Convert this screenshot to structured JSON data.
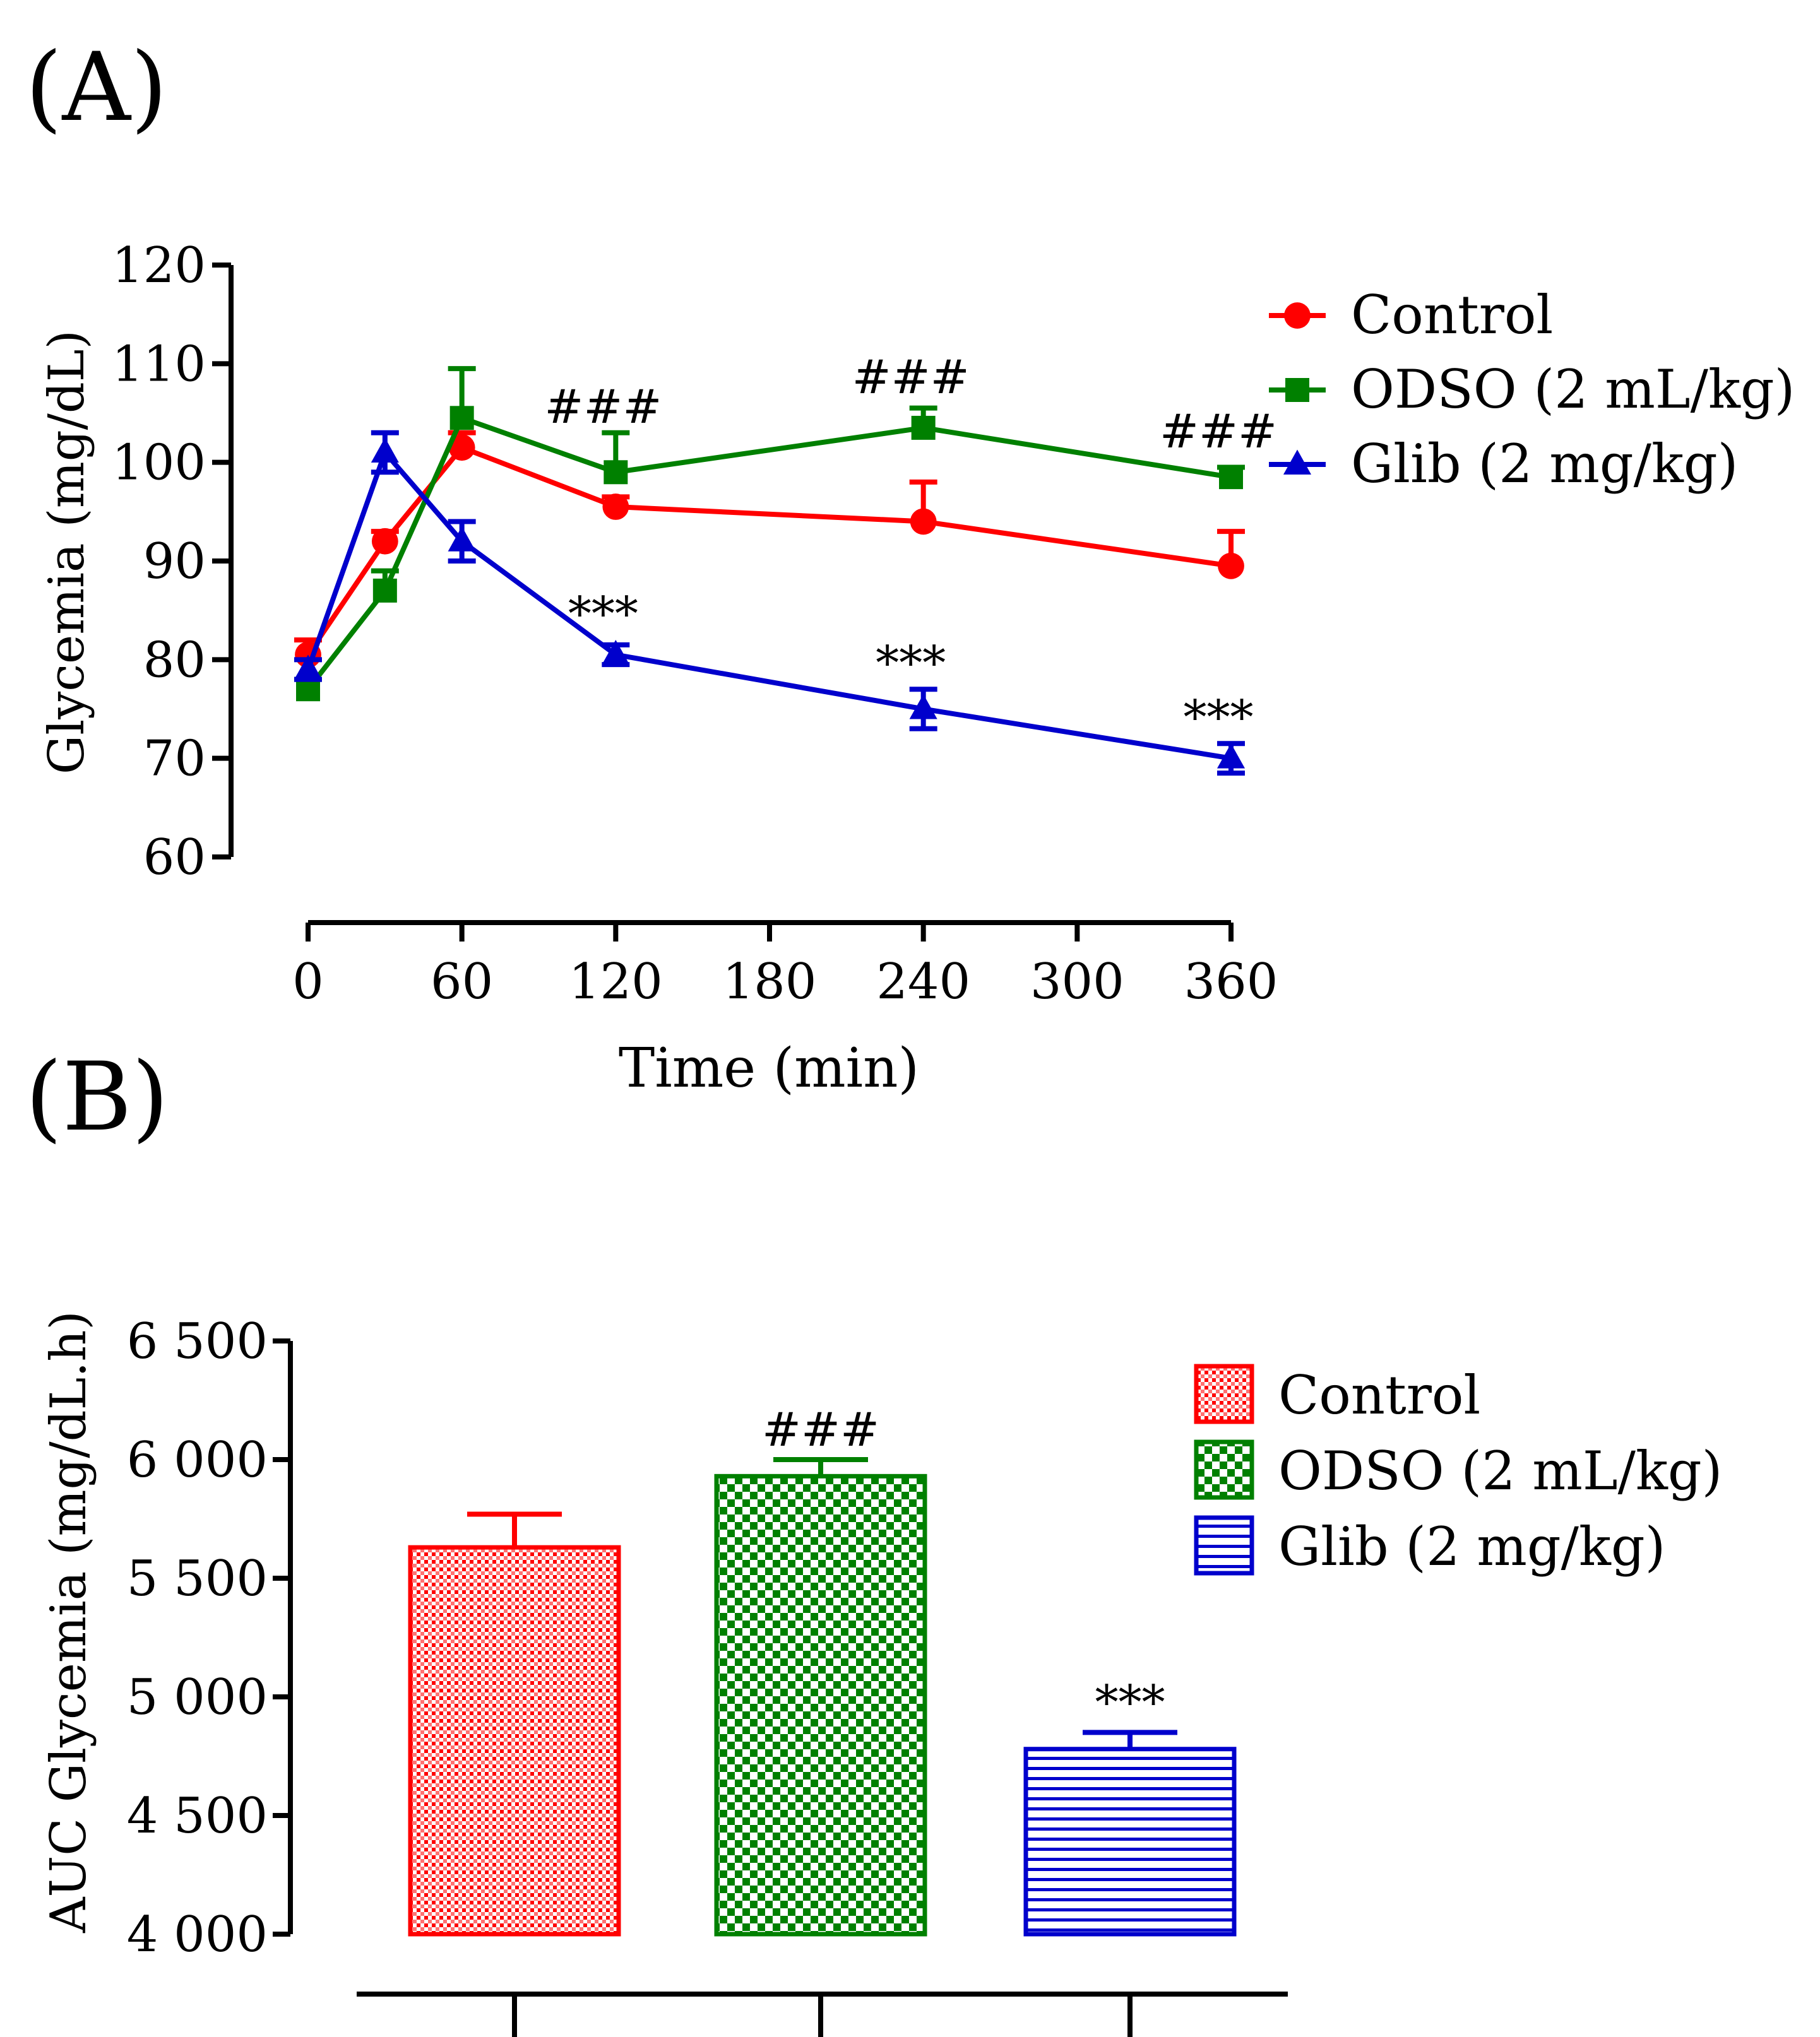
{
  "panels": {
    "a_label": "(A)",
    "b_label": "(B)"
  },
  "colors": {
    "control": "#ff0000",
    "odso": "#008000",
    "glib": "#0000cc",
    "axis": "#000000"
  },
  "chart_data": [
    {
      "type": "line",
      "panel": "A",
      "xlabel": "Time (min)",
      "ylabel": "Glycemia (mg/dL)",
      "xlim": [
        0,
        360
      ],
      "ylim": [
        60,
        120
      ],
      "x_ticks": [
        0,
        60,
        120,
        180,
        240,
        300,
        360
      ],
      "y_ticks": [
        60,
        70,
        80,
        90,
        100,
        110,
        120
      ],
      "legend_position": "top-right",
      "series": [
        {
          "name": "Control",
          "color": "#ff0000",
          "marker": "circle",
          "x": [
            0,
            30,
            60,
            120,
            240,
            360
          ],
          "y": [
            80.5,
            92,
            101.5,
            95.5,
            94,
            89.5
          ],
          "err": [
            1.5,
            1,
            1.5,
            1,
            4,
            3.5
          ],
          "err_dir": "up"
        },
        {
          "name": "ODSO (2 mL/kg)",
          "color": "#008000",
          "marker": "square",
          "x": [
            0,
            30,
            60,
            120,
            240,
            360
          ],
          "y": [
            77,
            87,
            104.5,
            99,
            103.5,
            98.5
          ],
          "err": [
            1,
            2,
            5,
            4,
            2,
            1
          ],
          "err_dir": "up"
        },
        {
          "name": "Glib (2 mg/kg)",
          "color": "#0000cc",
          "marker": "triangle",
          "x": [
            0,
            30,
            60,
            120,
            240,
            360
          ],
          "y": [
            79,
            101,
            92,
            80.5,
            75,
            70
          ],
          "err": [
            1,
            2,
            2,
            1,
            2,
            1.5
          ],
          "err_dir": "both"
        }
      ],
      "annotations": [
        {
          "text": "###",
          "x": 120,
          "y": 104,
          "color": "#000000"
        },
        {
          "text": "###",
          "x": 240,
          "y": 107,
          "color": "#000000"
        },
        {
          "text": "###",
          "x": 360,
          "y": 101.5,
          "color": "#000000"
        },
        {
          "text": "***",
          "x": 120,
          "y": 83,
          "color": "#000000"
        },
        {
          "text": "***",
          "x": 240,
          "y": 78,
          "color": "#000000"
        },
        {
          "text": "***",
          "x": 360,
          "y": 72.5,
          "color": "#000000"
        }
      ]
    },
    {
      "type": "bar",
      "panel": "B",
      "ylabel": "AUC Glycemia (mg/dL.h)",
      "ylim": [
        4000,
        6500
      ],
      "y_ticks": [
        4000,
        4500,
        5000,
        5500,
        6000,
        6500
      ],
      "y_tick_labels": [
        "4 000",
        "4 500",
        "5 000",
        "5 500",
        "6 000",
        "6 500"
      ],
      "categories": [
        "Control",
        "ODSO (2 mL/kg)",
        "Glib (2 mg/kg)"
      ],
      "values": [
        5630,
        5930,
        4780
      ],
      "errors": [
        140,
        70,
        70
      ],
      "colors": [
        "#ff0000",
        "#008000",
        "#0000cc"
      ],
      "patterns": [
        "dots",
        "checker",
        "hlines"
      ],
      "legend_position": "top-right",
      "annotations": [
        {
          "text": "",
          "bar": 0
        },
        {
          "text": "###",
          "bar": 1
        },
        {
          "text": "***",
          "bar": 2
        }
      ]
    }
  ]
}
